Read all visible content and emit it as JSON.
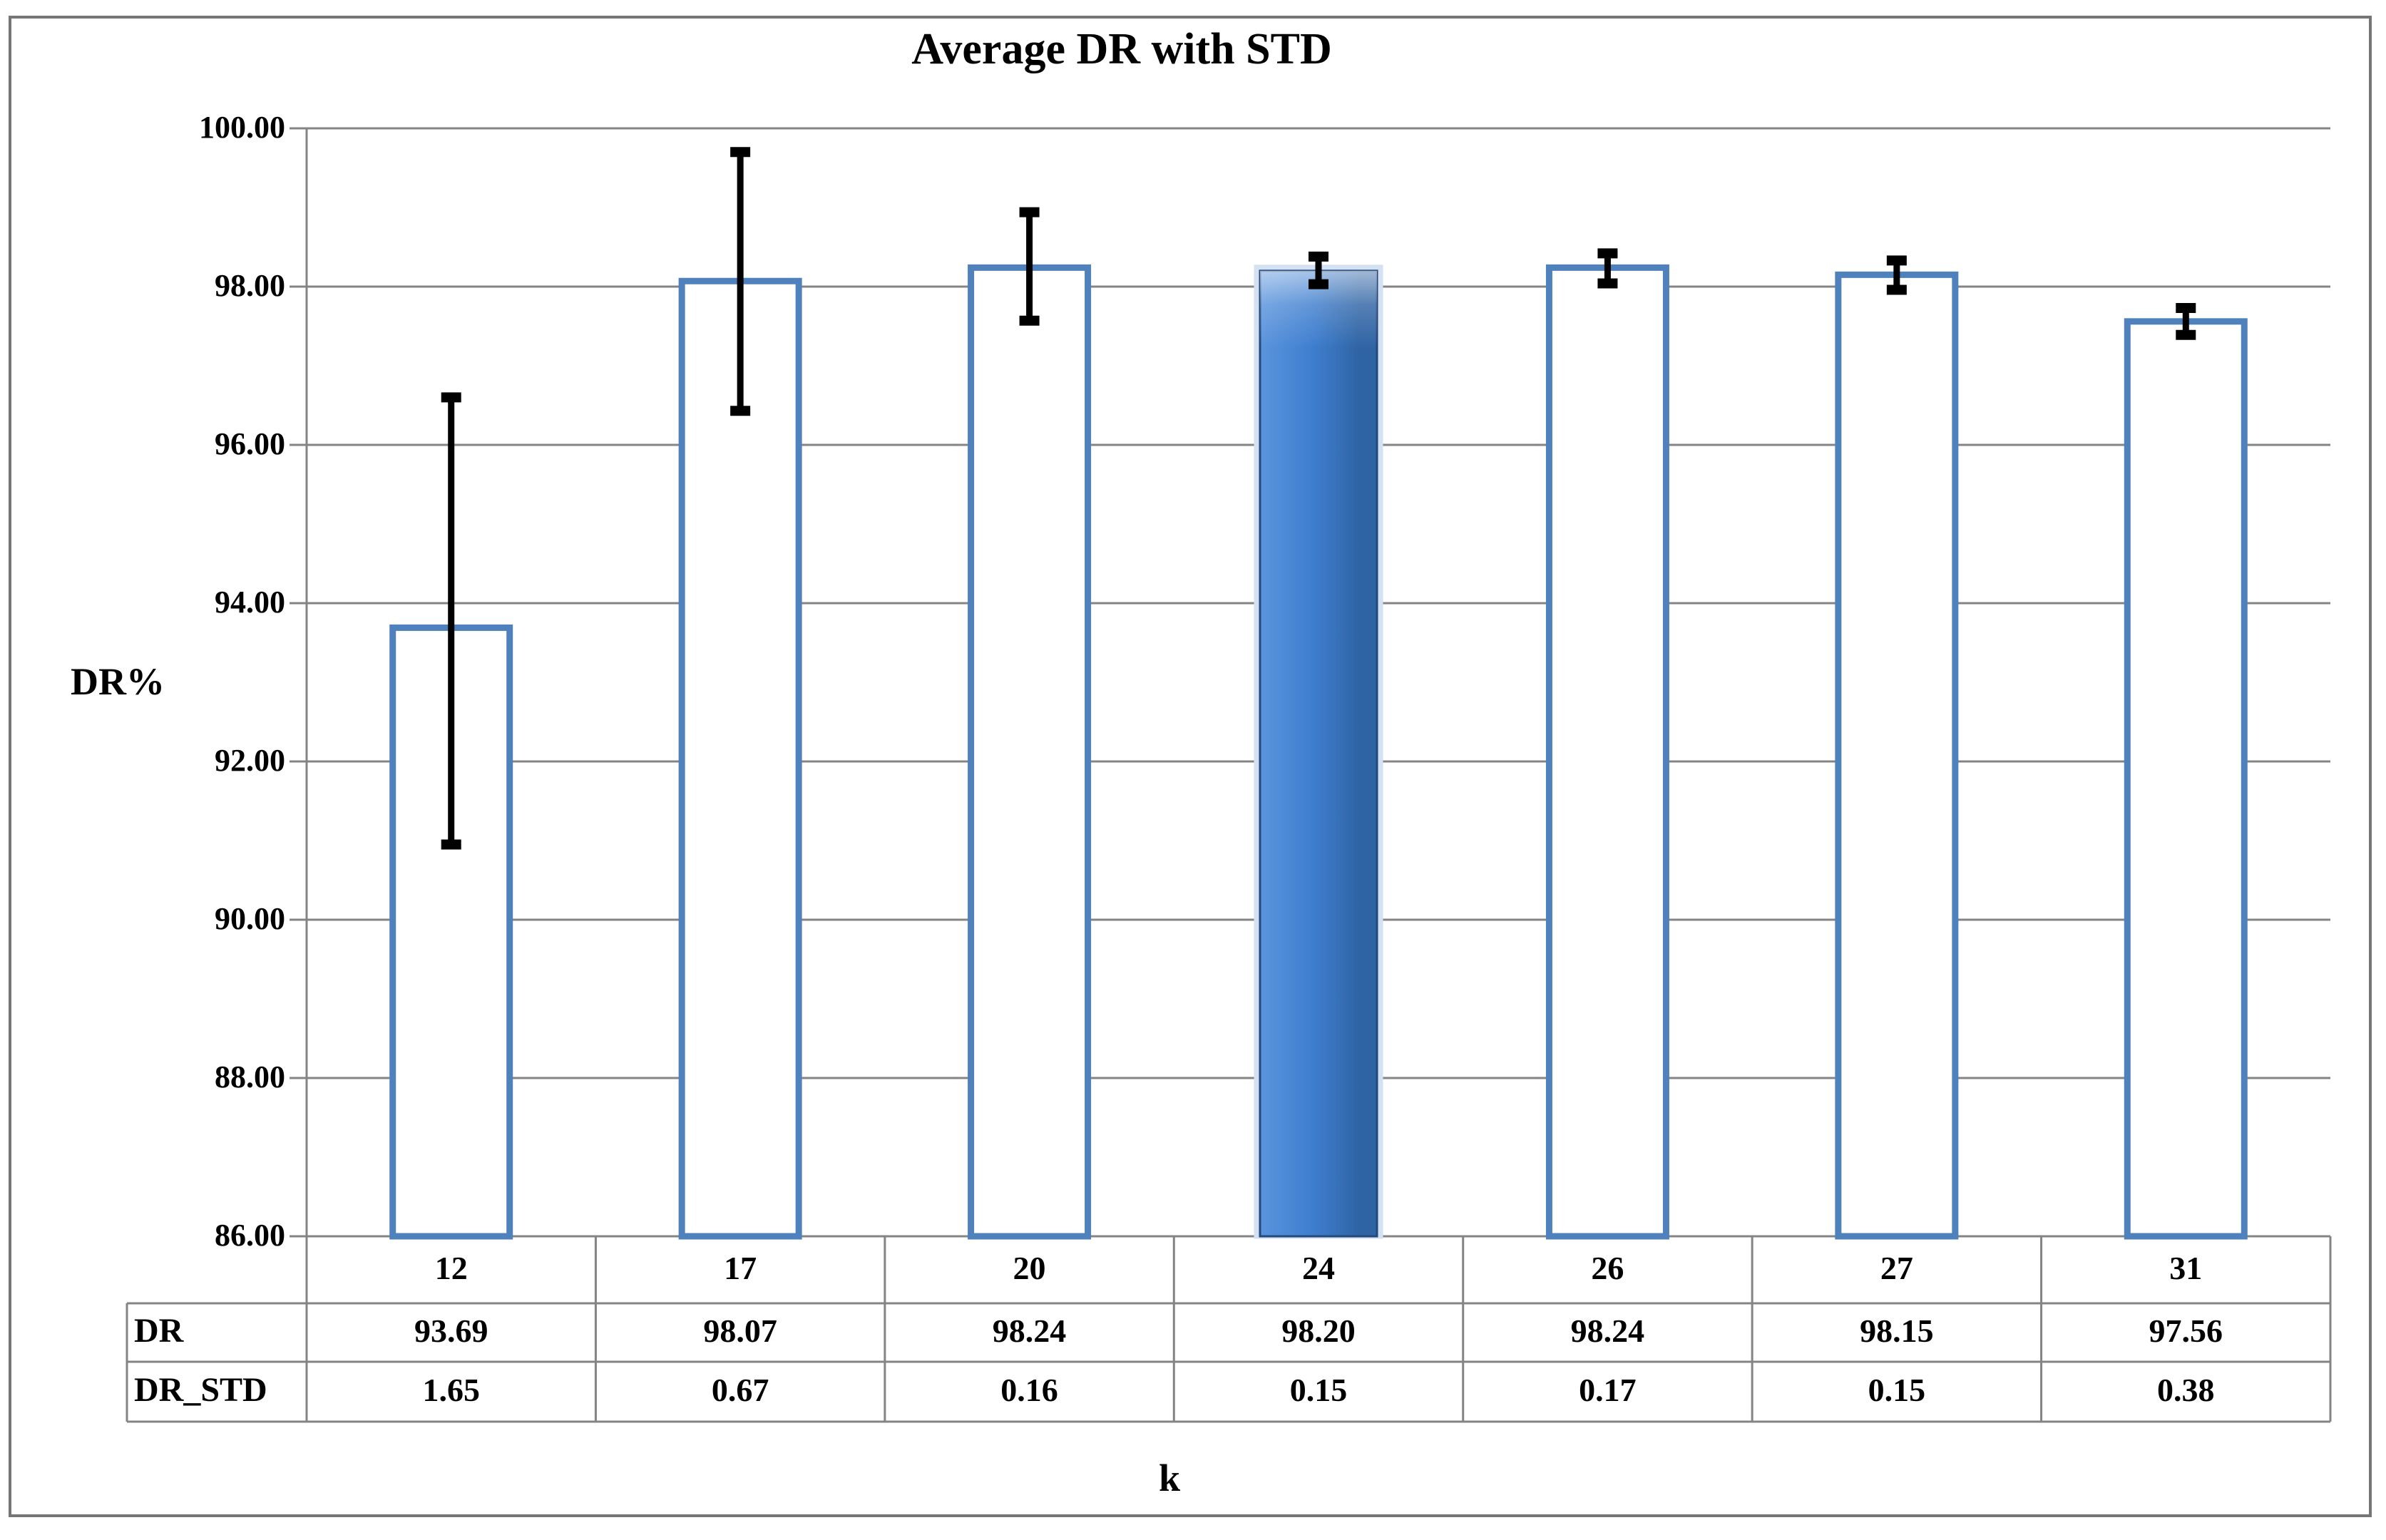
{
  "chart_data": {
    "type": "bar",
    "title": "Average DR with STD",
    "xlabel": "k",
    "ylabel": "DR%",
    "ylim": [
      86,
      100
    ],
    "ytick_step": 2,
    "ytick_labels": [
      "100.00",
      "98.00",
      "96.00",
      "94.00",
      "92.00",
      "90.00",
      "88.00",
      "86.00"
    ],
    "grid": true,
    "legend": false,
    "categories": [
      "12",
      "17",
      "20",
      "24",
      "26",
      "27",
      "31"
    ],
    "series": [
      {
        "name": "DR",
        "values": [
          93.69,
          98.07,
          98.24,
          98.2,
          98.24,
          98.15,
          97.56
        ]
      },
      {
        "name": "DR_STD",
        "values": [
          1.65,
          0.67,
          0.16,
          0.15,
          0.17,
          0.15,
          0.38
        ]
      }
    ],
    "bar_value_series": "DR",
    "highlighted_category": "24",
    "error_whiskers": [
      {
        "category": "12",
        "high": 96.6,
        "low": 90.95
      },
      {
        "category": "17",
        "high": 99.7,
        "low": 96.43
      },
      {
        "category": "20",
        "high": 98.94,
        "low": 97.57
      },
      {
        "category": "24",
        "high": 98.38,
        "low": 98.03
      },
      {
        "category": "26",
        "high": 98.42,
        "low": 98.04
      },
      {
        "category": "27",
        "high": 98.33,
        "low": 97.96
      },
      {
        "category": "31",
        "high": 97.73,
        "low": 97.39
      }
    ]
  },
  "colors": {
    "bar_fill": "#FFFFFF",
    "bar_border": "#4F81BD",
    "highlight_fill_light": "#5A94DC",
    "highlight_fill_mid": "#3E7ECF",
    "highlight_fill_dark": "#2F64A4",
    "highlight_border": "#24497B",
    "highlight_halo": "#D3E1F2",
    "gridline": "#848484",
    "axis": "#848484",
    "table_border": "#848484",
    "error_bar": "#000000",
    "text": "#000000",
    "figure_border": "#767676",
    "background": "#FFFFFF"
  }
}
